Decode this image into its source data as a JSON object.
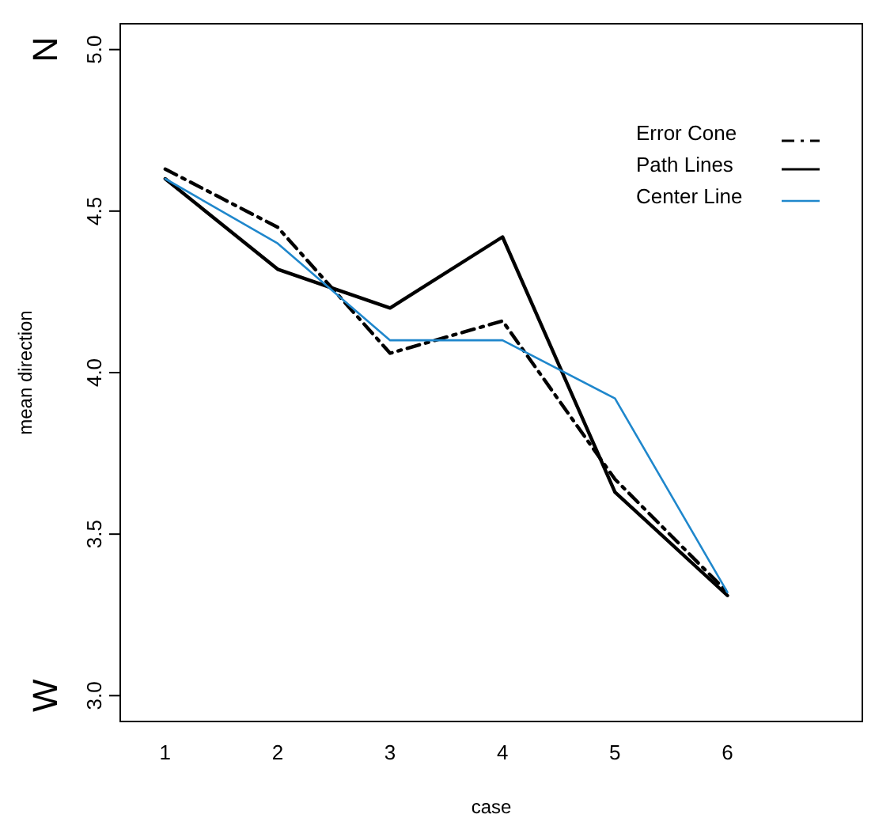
{
  "chart_data": {
    "type": "line",
    "xlabel": "case",
    "ylabel": "mean direction",
    "x": [
      1,
      2,
      3,
      4,
      5,
      6
    ],
    "series": [
      {
        "name": "Error Cone",
        "color": "#000000",
        "line_style": "dashed",
        "values": [
          4.63,
          4.45,
          4.06,
          4.16,
          3.67,
          3.32
        ]
      },
      {
        "name": "Path Lines",
        "color": "#000000",
        "line_style": "solid",
        "values": [
          4.6,
          4.32,
          4.2,
          4.42,
          3.63,
          3.31
        ]
      },
      {
        "name": "Center Line",
        "color": "#1f87cc",
        "line_style": "solid",
        "values": [
          4.6,
          4.4,
          4.1,
          4.1,
          3.92,
          3.32
        ]
      }
    ],
    "xlim": [
      0.6,
      7.2
    ],
    "xticks": [
      1,
      2,
      3,
      4,
      5,
      6
    ],
    "ylim": [
      2.92,
      5.08
    ],
    "yticks": [
      {
        "value": 3,
        "label": "3.0"
      },
      3.5,
      {
        "value": 4,
        "label": "4.0"
      },
      4.5,
      {
        "value": 5,
        "label": "5.0"
      }
    ],
    "annotations": [
      "N",
      "W"
    ],
    "legend": "top right",
    "grid": false
  }
}
